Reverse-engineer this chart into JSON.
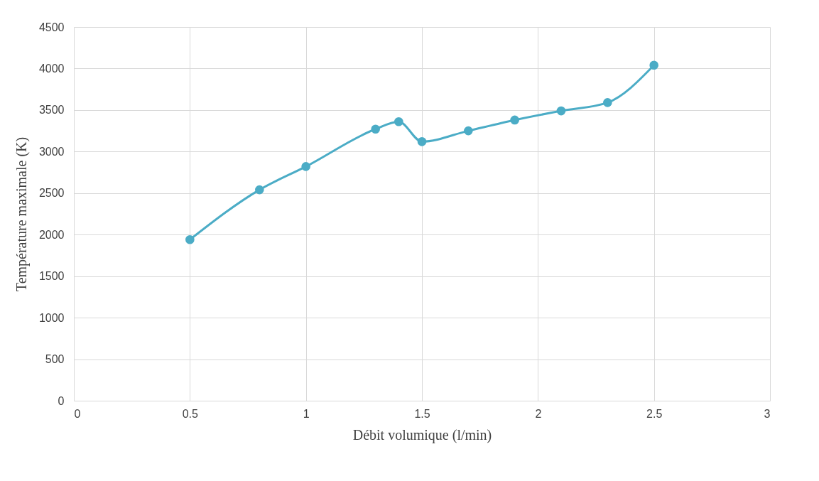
{
  "chart_data": {
    "type": "line",
    "xlabel": "Débit volumique (l/min)",
    "ylabel": "Température maximale (K)",
    "x": [
      0.5,
      0.8,
      1.0,
      1.3,
      1.4,
      1.5,
      1.7,
      1.9,
      2.1,
      2.3,
      2.5
    ],
    "series": [
      {
        "color": "#4bacc6",
        "values": [
          1940,
          2540,
          2820,
          3270,
          3360,
          3120,
          3250,
          3380,
          3490,
          3590,
          4040
        ]
      }
    ],
    "xlim": [
      0,
      3
    ],
    "xticks": [
      0,
      0.5,
      1,
      1.5,
      2,
      2.5,
      3
    ],
    "ylim": [
      0,
      4500
    ],
    "yticks": [
      0,
      500,
      1000,
      1500,
      2000,
      2500,
      3000,
      3500,
      4000,
      4500
    ],
    "grid": true,
    "marker": "circle",
    "line_style": "solid"
  }
}
